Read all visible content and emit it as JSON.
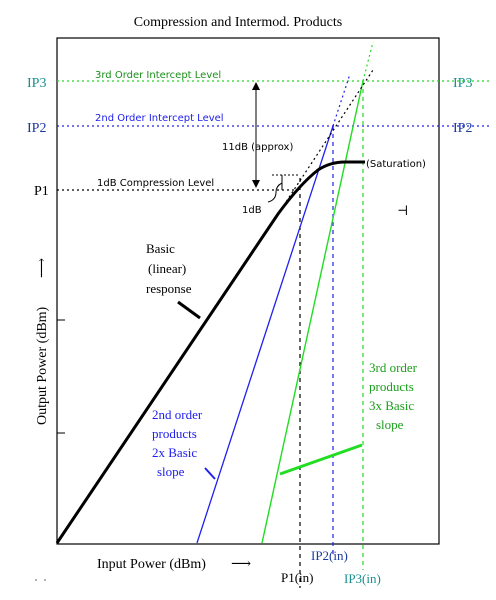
{
  "title": "Compression and Intermod. Products",
  "x_axis": {
    "label": "Input Power (dBm)",
    "arrow": "⟶"
  },
  "y_axis": {
    "label": "Output Power (dBm)",
    "arrow": "⟶"
  },
  "left_labels": {
    "ip3": "IP3",
    "ip2": "IP2",
    "p1": "P1"
  },
  "bottom_labels": {
    "p1_in": "P1(in)",
    "ip2_in": "IP2(in)",
    "ip3_in": "IP3(in)"
  },
  "level_labels": {
    "third_order": "3rd Order Intercept Level",
    "second_order": "2nd Order Intercept Level",
    "compression": "1dB Compression Level"
  },
  "annotations": {
    "eleven_db": "11dB (approx)",
    "one_db": "1dB",
    "saturation": "(Saturation)",
    "basic_line1": "Basic",
    "basic_line2": "(linear)",
    "basic_line3": "response",
    "second_line1": "2nd order",
    "second_line2": "products",
    "second_line3": "2x Basic",
    "second_line4": "slope",
    "third_line1": "3rd order",
    "third_line2": "products",
    "third_line3": "3x Basic",
    "third_line4": "slope",
    "stray_mark": "⊣"
  },
  "colors": {
    "third_order": "#22dd22",
    "second_order": "#2020ee",
    "basic": "#000000",
    "ip3_label": "#1a8f8f",
    "ip2_label": "#1a3aa0"
  }
}
